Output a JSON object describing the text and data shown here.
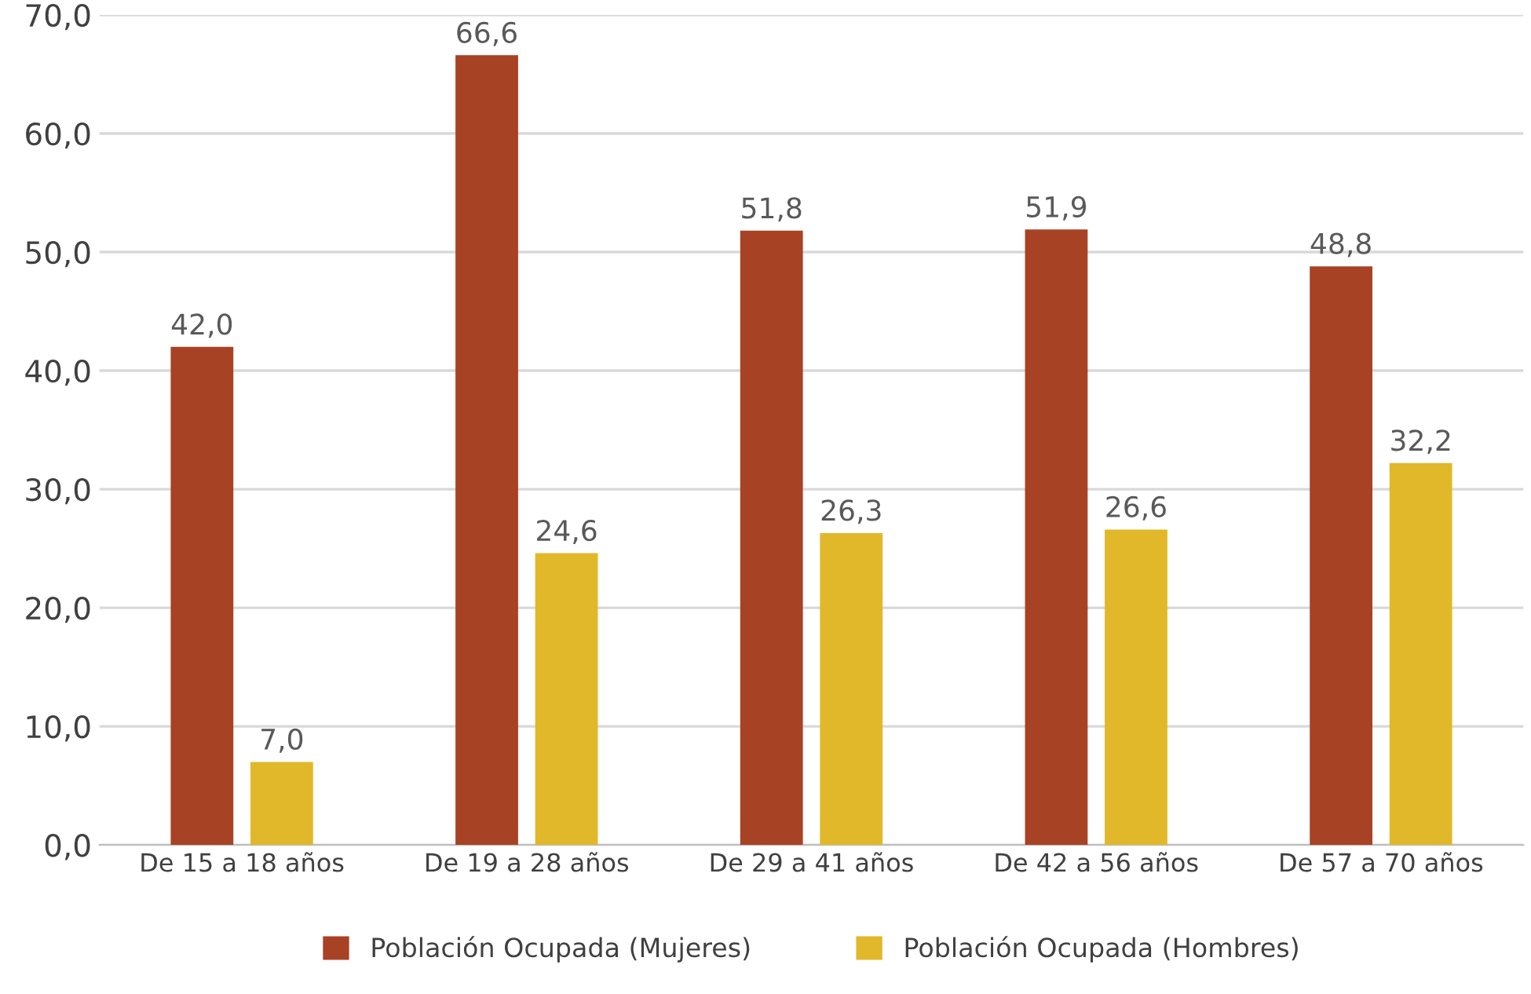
{
  "chart_data": {
    "type": "bar",
    "categories": [
      "De 15 a 18 años",
      "De 19 a 28 años",
      "De 29 a 41 años",
      "De 42 a 56 años",
      "De 57 a 70 años"
    ],
    "series": [
      {
        "name": "Población Ocupada (Mujeres)",
        "color": "#a84224",
        "values": [
          42.0,
          66.6,
          51.8,
          51.9,
          48.8
        ],
        "value_labels": [
          "42,0",
          "66,6",
          "51,8",
          "51,9",
          "48,8"
        ]
      },
      {
        "name": "Población Ocupada (Hombres)",
        "color": "#e1b829",
        "values": [
          7.0,
          24.6,
          26.3,
          26.6,
          32.2
        ],
        "value_labels": [
          "7,0",
          "24,6",
          "26,3",
          "26,6",
          "32,2"
        ]
      }
    ],
    "ylim": [
      0,
      70
    ],
    "yticks": [
      {
        "value": 0,
        "label": "0,0"
      },
      {
        "value": 10,
        "label": "10,0"
      },
      {
        "value": 20,
        "label": "20,0"
      },
      {
        "value": 30,
        "label": "30,0"
      },
      {
        "value": 40,
        "label": "40,0"
      },
      {
        "value": 50,
        "label": "50,0"
      },
      {
        "value": 60,
        "label": "60,0"
      },
      {
        "value": 70,
        "label": "70,0"
      }
    ],
    "grid": "y",
    "legend": "bottom"
  }
}
